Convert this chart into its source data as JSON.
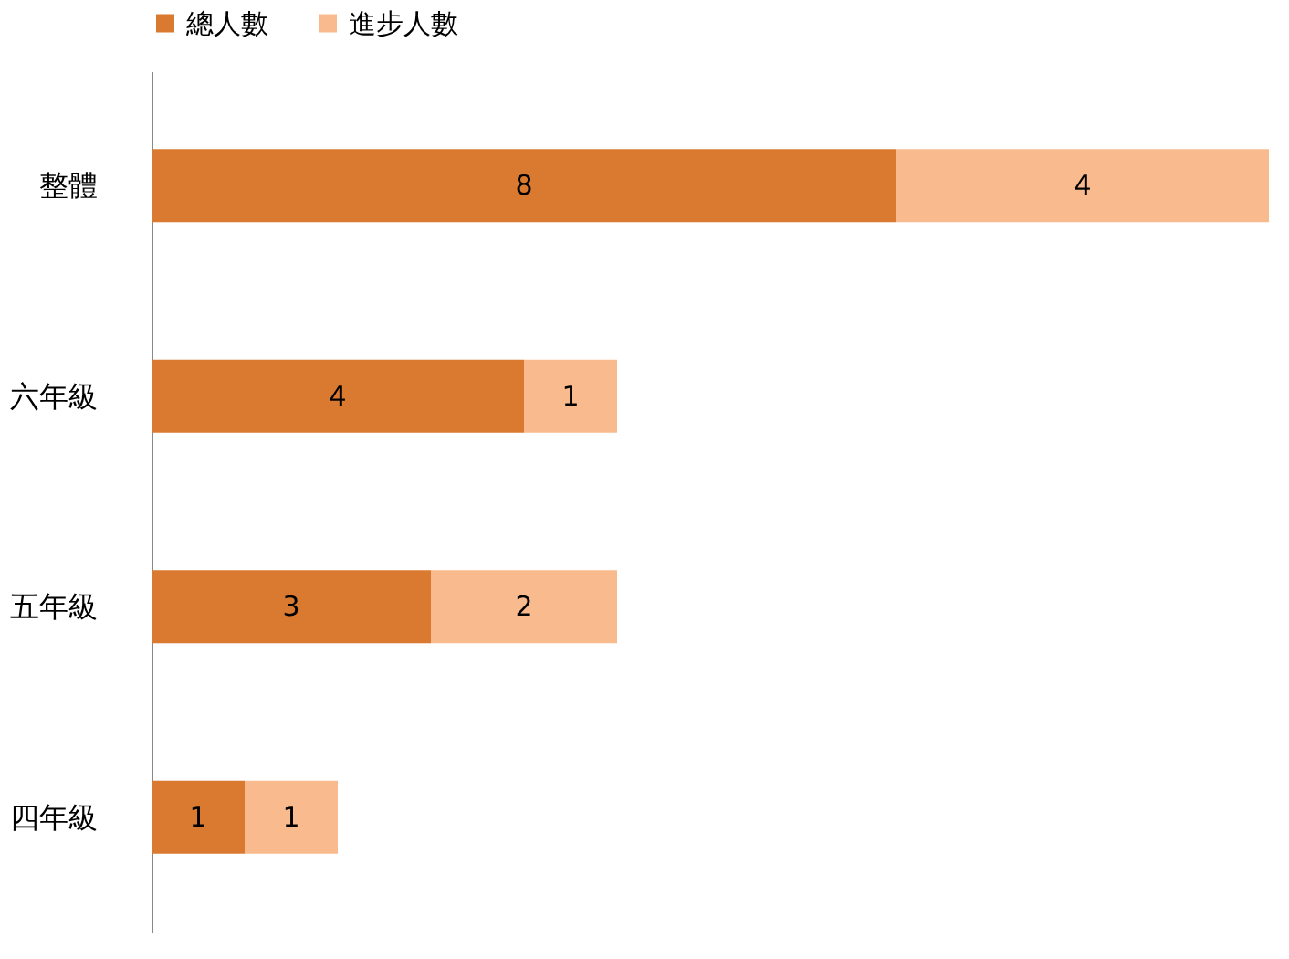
{
  "chart_data": {
    "type": "bar",
    "orientation": "horizontal",
    "stacked": true,
    "data_labels": true,
    "legend": "top",
    "categories": [
      "整體",
      "六年級",
      "五年級",
      "四年級"
    ],
    "series": [
      {
        "name": "總人數",
        "color": "#d97a30",
        "values": [
          8,
          4,
          3,
          1
        ]
      },
      {
        "name": "進步人數",
        "color": "#f9bb8e",
        "values": [
          4,
          1,
          2,
          1
        ]
      }
    ]
  }
}
